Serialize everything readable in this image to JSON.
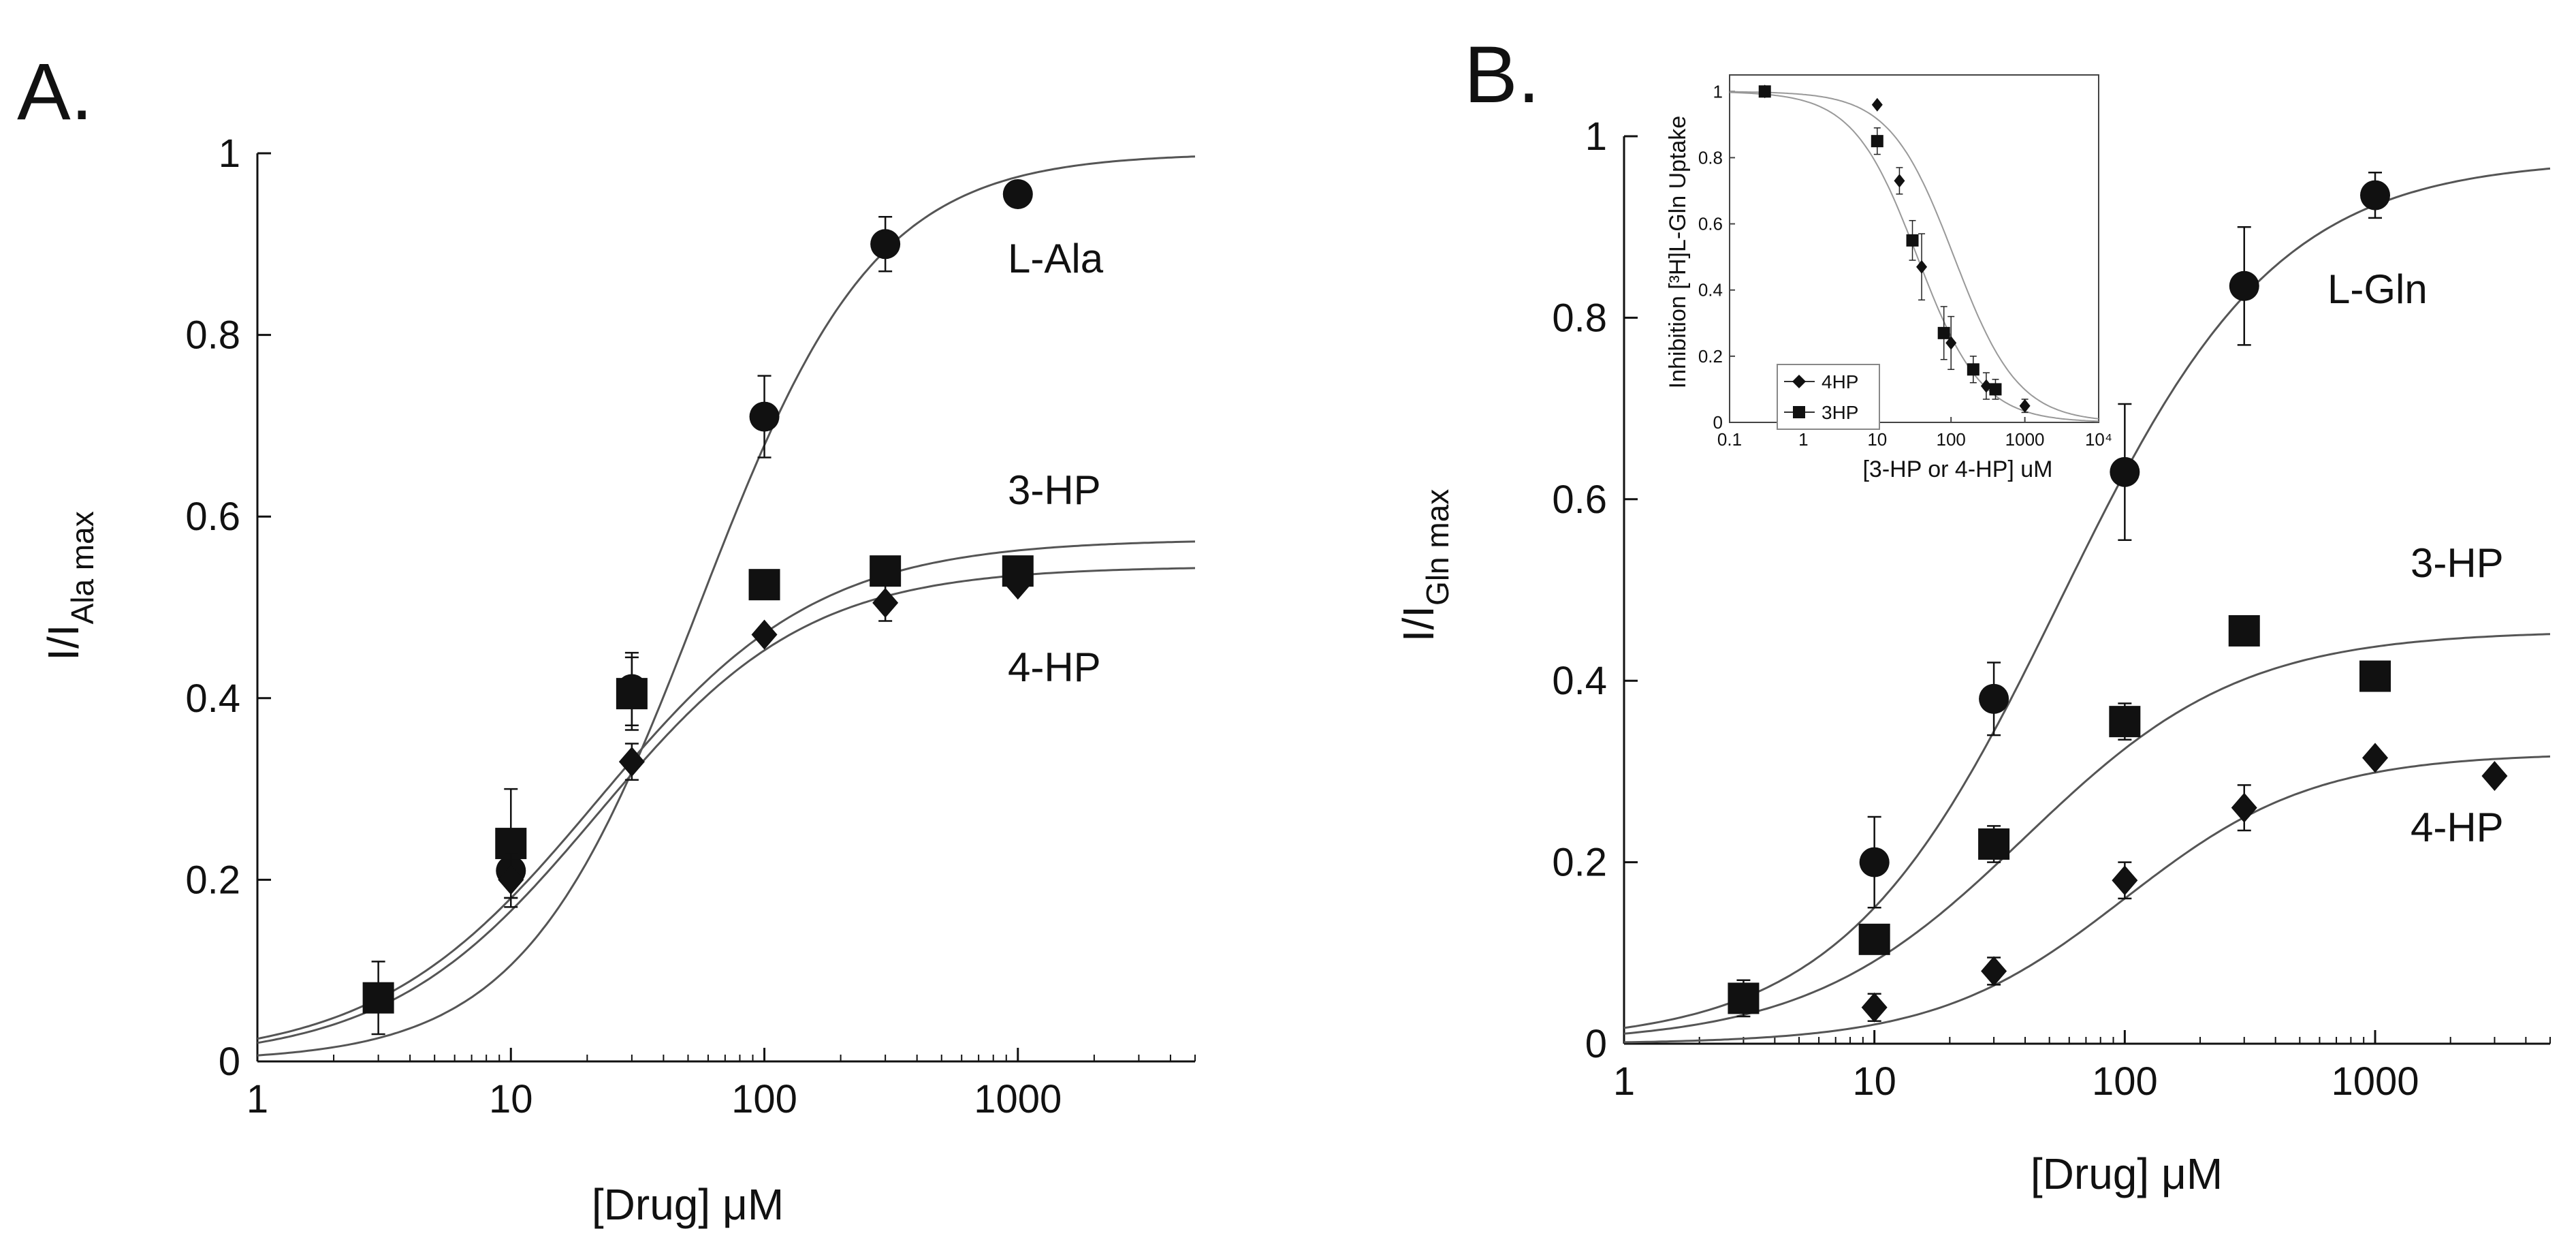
{
  "chart_data": [
    {
      "panel": "A.",
      "type": "scatter",
      "xscale": "log",
      "xlim": [
        1,
        5000
      ],
      "ylim": [
        0,
        1
      ],
      "xticks": [
        1,
        10,
        100,
        1000
      ],
      "xtick_labels": [
        "1",
        "10",
        "100",
        "1000"
      ],
      "yticks": [
        0,
        0.2,
        0.4,
        0.6,
        0.8,
        1
      ],
      "ytick_labels": [
        "0",
        "0.2",
        "0.4",
        "0.6",
        "0.8",
        "1"
      ],
      "xlabel": "[Drug] μM",
      "ylabel_main": "I/I",
      "ylabel_sub": "Ala max",
      "series": [
        {
          "name": "L-Ala",
          "marker": "circle",
          "x": [
            10,
            30,
            100,
            300,
            1000
          ],
          "y": [
            0.21,
            0.41,
            0.71,
            0.9,
            0.955
          ],
          "err": [
            0.03,
            0.04,
            0.045,
            0.03,
            0.01
          ],
          "fit": {
            "top": 1.0,
            "ec50": 55,
            "hill": 1.25,
            "bottom": 0
          }
        },
        {
          "name": "3-HP",
          "marker": "square",
          "x": [
            3,
            10,
            30,
            100,
            300,
            1000
          ],
          "y": [
            0.07,
            0.24,
            0.405,
            0.525,
            0.54,
            0.54
          ],
          "err": [
            0.04,
            0.06,
            0.04,
            0.0,
            0.0,
            0.0
          ],
          "fit": {
            "top": 0.575,
            "ec50": 22,
            "hill": 1.0,
            "bottom": 0
          }
        },
        {
          "name": "4-HP",
          "marker": "diamond",
          "x": [
            10,
            30,
            100,
            300,
            1000
          ],
          "y": [
            0.2,
            0.33,
            0.47,
            0.505,
            0.525
          ],
          "err": [
            0.03,
            0.02,
            0.0,
            0.02,
            0.0
          ],
          "fit": {
            "top": 0.545,
            "ec50": 22,
            "hill": 1.05,
            "bottom": 0
          }
        }
      ]
    },
    {
      "panel": "B.",
      "type": "scatter",
      "xscale": "log",
      "xlim": [
        1,
        5000
      ],
      "ylim": [
        0,
        1
      ],
      "xticks": [
        1,
        10,
        100,
        1000
      ],
      "xtick_labels": [
        "1",
        "10",
        "100",
        "1000"
      ],
      "yticks": [
        0,
        0.2,
        0.4,
        0.6,
        0.8,
        1
      ],
      "ytick_labels": [
        "0",
        "0.2",
        "0.4",
        "0.6",
        "0.8",
        "1"
      ],
      "xlabel": "[Drug] μM",
      "ylabel_main": "I/I",
      "ylabel_sub": "Gln max",
      "series": [
        {
          "name": "L-Gln",
          "marker": "circle",
          "x": [
            3,
            10,
            30,
            100,
            300,
            1000
          ],
          "y": [
            0.05,
            0.2,
            0.38,
            0.63,
            0.835,
            0.935
          ],
          "err": [
            0.02,
            0.05,
            0.04,
            0.075,
            0.065,
            0.025
          ],
          "fit": {
            "top": 0.975,
            "ec50": 55,
            "hill": 1.0,
            "bottom": 0
          }
        },
        {
          "name": "3-HP",
          "marker": "square",
          "x": [
            3,
            10,
            30,
            100,
            300,
            1000
          ],
          "y": [
            0.05,
            0.115,
            0.22,
            0.355,
            0.455,
            0.405
          ],
          "err": [
            0.0,
            0.0,
            0.02,
            0.02,
            0.0,
            0.0
          ],
          "fit": {
            "top": 0.455,
            "ec50": 40,
            "hill": 1.0,
            "bottom": 0
          }
        },
        {
          "name": "4-HP",
          "marker": "diamond",
          "x": [
            10,
            30,
            100,
            300,
            1000,
            3000
          ],
          "y": [
            0.04,
            0.08,
            0.18,
            0.26,
            0.315,
            0.295
          ],
          "err": [
            0.015,
            0.015,
            0.02,
            0.025,
            0.0,
            0.0
          ],
          "fit": {
            "top": 0.32,
            "ec50": 100,
            "hill": 1.15,
            "bottom": 0
          }
        }
      ]
    },
    {
      "panel": "B. inset",
      "type": "scatter",
      "xscale": "log",
      "xlim": [
        0.1,
        10000
      ],
      "ylim": [
        0,
        1.05
      ],
      "xtick_labels": [
        "0.1",
        "1",
        "10",
        "100",
        "1000",
        "10⁴"
      ],
      "ytick_labels": [
        "0",
        "0.2",
        "0.4",
        "0.6",
        "0.8",
        "1"
      ],
      "yticks": [
        0,
        0.2,
        0.4,
        0.6,
        0.8,
        1
      ],
      "xlabel": "[3-HP or 4-HP] uM",
      "ylabel": "Inhibition [³H]L-Gln Uptake",
      "legend": [
        "4HP",
        "3HP"
      ],
      "series": [
        {
          "name": "4HP",
          "marker": "diamond",
          "x": [
            0.3,
            10,
            20,
            40,
            100,
            300,
            1000
          ],
          "y": [
            1.0,
            0.96,
            0.73,
            0.47,
            0.24,
            0.11,
            0.05
          ],
          "err": [
            0,
            0,
            0.04,
            0.1,
            0.08,
            0.04,
            0.02
          ],
          "fit": {
            "top": 1.0,
            "ic50": 110,
            "hill": 1.0
          }
        },
        {
          "name": "3HP",
          "marker": "square",
          "x": [
            0.3,
            10,
            30,
            80,
            200,
            400
          ],
          "y": [
            1.0,
            0.85,
            0.55,
            0.27,
            0.16,
            0.1
          ],
          "err": [
            0,
            0.04,
            0.06,
            0.08,
            0.04,
            0.03
          ],
          "fit": {
            "top": 1.0,
            "ic50": 35,
            "hill": 1.0
          }
        }
      ]
    }
  ]
}
